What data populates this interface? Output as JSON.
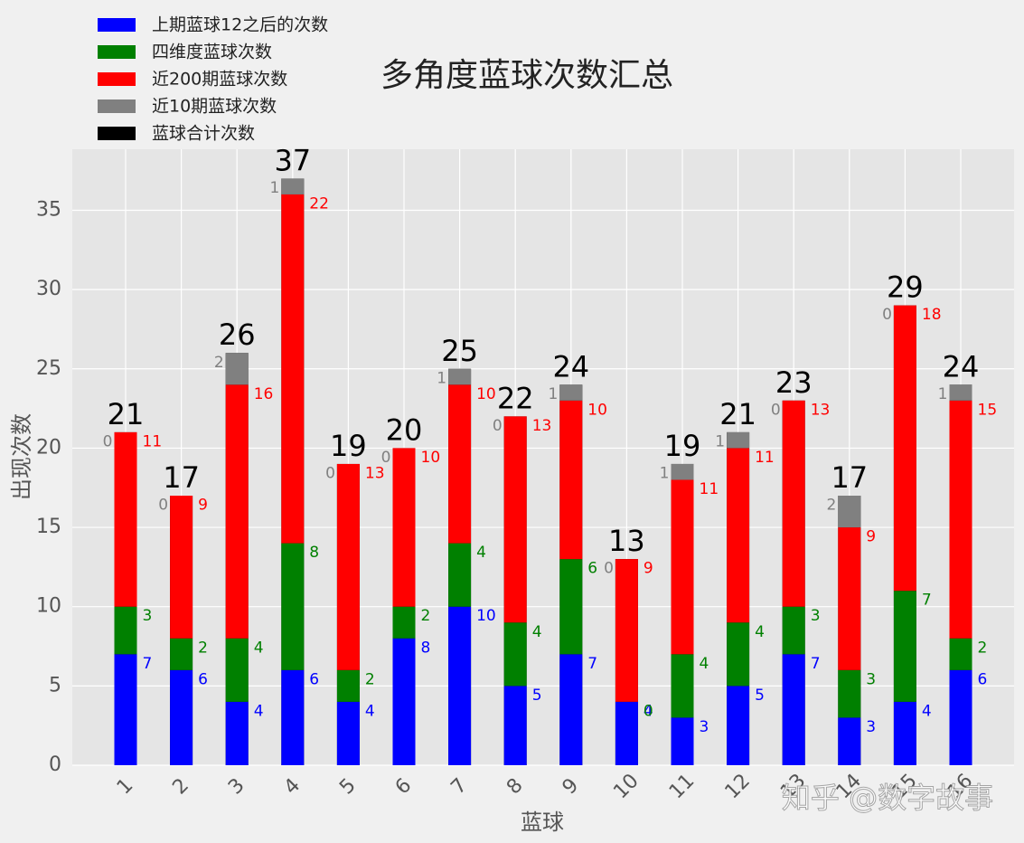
{
  "chart_data": {
    "type": "bar",
    "title": "多角度蓝球次数汇总",
    "x_label": "蓝球",
    "y_label": "出现次数",
    "categories": [
      "1",
      "2",
      "3",
      "4",
      "5",
      "6",
      "7",
      "8",
      "9",
      "10",
      "11",
      "12",
      "13",
      "14",
      "15",
      "16"
    ],
    "series": [
      {
        "name": "上期蓝球12之后的次数",
        "color": "#0000ff",
        "values": [
          7,
          6,
          4,
          6,
          4,
          8,
          10,
          5,
          7,
          4,
          3,
          5,
          7,
          3,
          4,
          6
        ]
      },
      {
        "name": "四维度蓝球次数",
        "color": "#008000",
        "values": [
          3,
          2,
          4,
          8,
          2,
          2,
          4,
          4,
          6,
          0,
          4,
          4,
          3,
          3,
          7,
          2
        ]
      },
      {
        "name": "近200期蓝球次数",
        "color": "#ff0000",
        "values": [
          11,
          9,
          16,
          22,
          13,
          10,
          10,
          13,
          10,
          9,
          11,
          11,
          13,
          9,
          18,
          15
        ]
      },
      {
        "name": "近10期蓝球次数",
        "color": "#808080",
        "values": [
          0,
          0,
          2,
          1,
          0,
          0,
          1,
          0,
          1,
          0,
          1,
          1,
          0,
          2,
          0,
          1
        ]
      },
      {
        "name": "蓝球合计次数",
        "color": "#000000",
        "values": [
          21,
          17,
          26,
          37,
          19,
          20,
          25,
          22,
          24,
          13,
          19,
          21,
          23,
          17,
          29,
          24
        ]
      }
    ],
    "ylim": [
      0,
      38.85
    ],
    "yticks": [
      0,
      5,
      10,
      15,
      20,
      25,
      30,
      35
    ],
    "grid": true,
    "legend": "upper left",
    "watermark": "知乎 @数字故事"
  }
}
